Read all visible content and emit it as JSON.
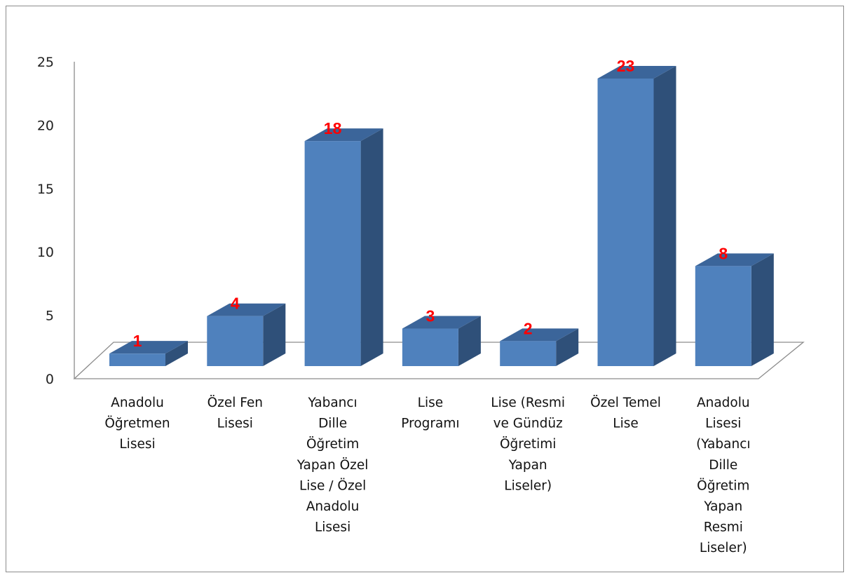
{
  "chart_data": {
    "type": "bar",
    "style": "3d-column",
    "categories": [
      "Anadolu Öğretmen Lisesi",
      "Özel Fen Lisesi",
      "Yabancı Dille Öğretim Yapan Özel Lise / Özel Anadolu Lisesi",
      "Lise Programı",
      "Lise (Resmi ve Gündüz Öğretimi Yapan Liseler)",
      "Özel Temel Lise",
      "Anadolu Lisesi (Yabancı Dille Öğretim Yapan Resmi Liseler)"
    ],
    "category_lines": [
      [
        "Anadolu",
        "Öğretmen",
        "Lisesi"
      ],
      [
        "Özel Fen",
        "Lisesi"
      ],
      [
        "Yabancı",
        "Dille",
        "Öğretim",
        "Yapan Özel",
        "Lise / Özel",
        "Anadolu",
        "Lisesi"
      ],
      [
        "Lise",
        "Programı"
      ],
      [
        "Lise (Resmi",
        "ve Gündüz",
        "Öğretimi",
        "Yapan",
        "Liseler)"
      ],
      [
        "Özel Temel",
        "Lise"
      ],
      [
        "Anadolu",
        "Lisesi",
        "(Yabancı",
        "Dille",
        "Öğretim",
        "Yapan",
        "Resmi",
        "Liseler)"
      ]
    ],
    "values": [
      1,
      4,
      18,
      3,
      2,
      23,
      8
    ],
    "data_labels": [
      "1",
      "4",
      "18",
      "3",
      "2",
      "23",
      "8"
    ],
    "yticks": [
      "0",
      "5",
      "10",
      "15",
      "20",
      "25"
    ],
    "ylim": [
      0,
      25
    ],
    "grid": false,
    "legend": "none",
    "colors": {
      "bar_front": "#4f81bd",
      "bar_side": "#2f5079",
      "bar_top": "#3b659a",
      "data_label": "#ff0000",
      "axis": "#8c8c8c"
    }
  }
}
